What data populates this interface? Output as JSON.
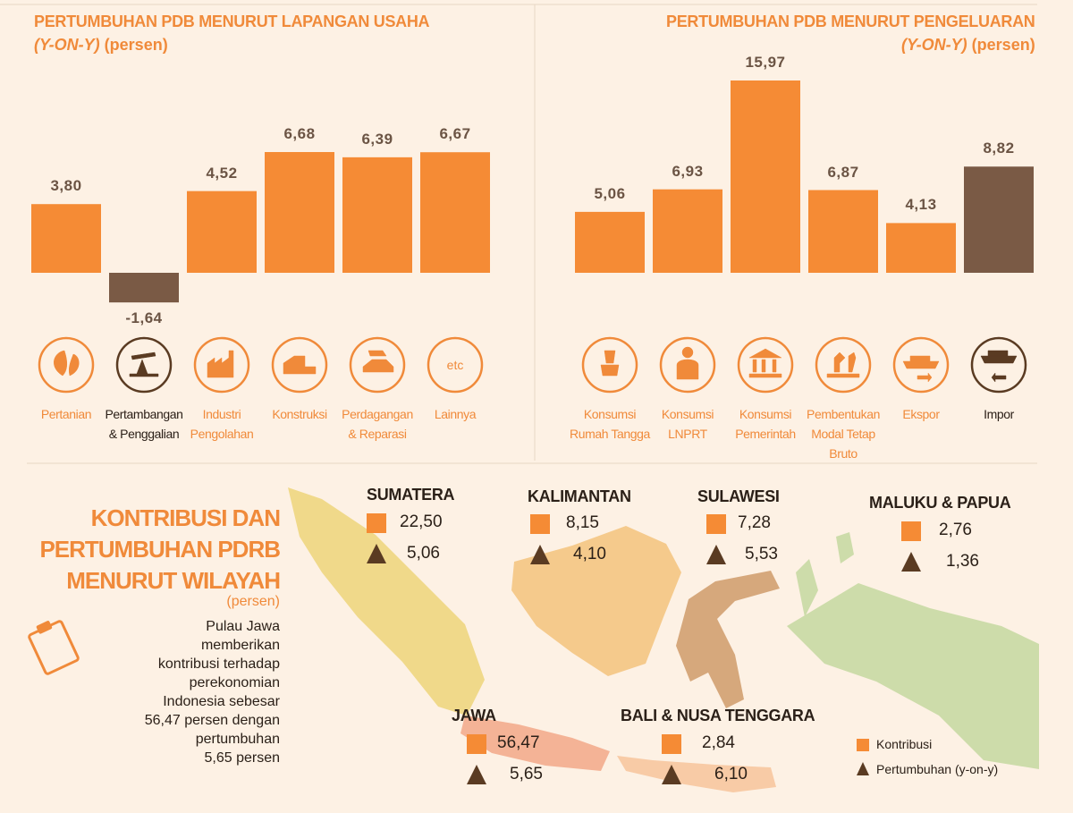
{
  "chart_data": [
    {
      "type": "bar",
      "title": "PERTUMBUHAN PDB MENURUT LAPANGAN USAHA",
      "subtitle": [
        "(Y-ON-Y)",
        "(persen)"
      ],
      "categories": [
        "Pertanian",
        "Pertambangan & Penggalian",
        "Industri Pengolahan",
        "Konstruksi",
        "Perdagangan & Reparasi",
        "Lainnya"
      ],
      "values": [
        3.8,
        -1.64,
        4.52,
        6.68,
        6.39,
        6.67
      ],
      "value_labels": [
        "3,80",
        "-1,64",
        "4,52",
        "6,68",
        "6,39",
        "6,67"
      ],
      "colors": [
        "#f58b35",
        "#7a5a45",
        "#f58b35",
        "#f58b35",
        "#f58b35",
        "#f58b35"
      ]
    },
    {
      "type": "bar",
      "title": "PERTUMBUHAN PDB MENURUT PENGELUARAN",
      "subtitle": [
        "(Y-ON-Y)",
        "(persen)"
      ],
      "categories": [
        "Konsumsi Rumah Tangga",
        "Konsumsi LNPRT",
        "Konsumsi Pemerintah",
        "Pembentukan Modal Tetap Bruto",
        "Ekspor",
        "Impor"
      ],
      "values": [
        5.06,
        6.93,
        15.97,
        6.87,
        4.13,
        8.82
      ],
      "value_labels": [
        "5,06",
        "6,93",
        "15,97",
        "6,87",
        "4,13",
        "8,82"
      ],
      "colors": [
        "#f58b35",
        "#f58b35",
        "#f58b35",
        "#f58b35",
        "#f58b35",
        "#7a5a45"
      ]
    }
  ],
  "icon_text": "etc",
  "map": {
    "title": [
      "KONTRIBUSI DAN",
      "PERTUMBUHAN PDRB",
      "MENURUT WILAYAH"
    ],
    "unit": "(persen)",
    "description": [
      "Pulau Jawa",
      "memberikan",
      "kontribusi terhadap",
      "perekonomian",
      "Indonesia sebesar",
      "56,47 persen dengan",
      "pertumbuhan",
      "5,65 persen"
    ],
    "regions": [
      {
        "name": "SUMATERA",
        "contribution": "22,50",
        "growth": "5,06"
      },
      {
        "name": "KALIMANTAN",
        "contribution": "8,15",
        "growth": "4,10"
      },
      {
        "name": "SULAWESI",
        "contribution": "7,28",
        "growth": "5,53"
      },
      {
        "name": "MALUKU & PAPUA",
        "contribution": "2,76",
        "growth": "1,36"
      },
      {
        "name": "JAWA",
        "contribution": "56,47",
        "growth": "5,65"
      },
      {
        "name": "BALI & NUSA TENGGARA",
        "contribution": "2,84",
        "growth": "6,10"
      }
    ],
    "legend": {
      "contribution": "Kontribusi",
      "growth": "Pertumbuhan (y-on-y)"
    }
  }
}
